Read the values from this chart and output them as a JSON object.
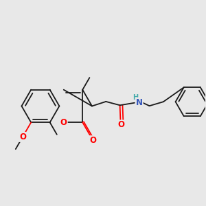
{
  "bg_color": "#e8e8e8",
  "bond_color": "#1a1a1a",
  "bond_width": 1.3,
  "O_color": "#ff0000",
  "N_color": "#3355bb",
  "H_color": "#44aaaa",
  "font_size": 8.5,
  "fig_size": [
    3.0,
    3.0
  ],
  "dpi": 100,
  "xlim": [
    0.0,
    1.0
  ],
  "ylim": [
    0.25,
    0.85
  ]
}
